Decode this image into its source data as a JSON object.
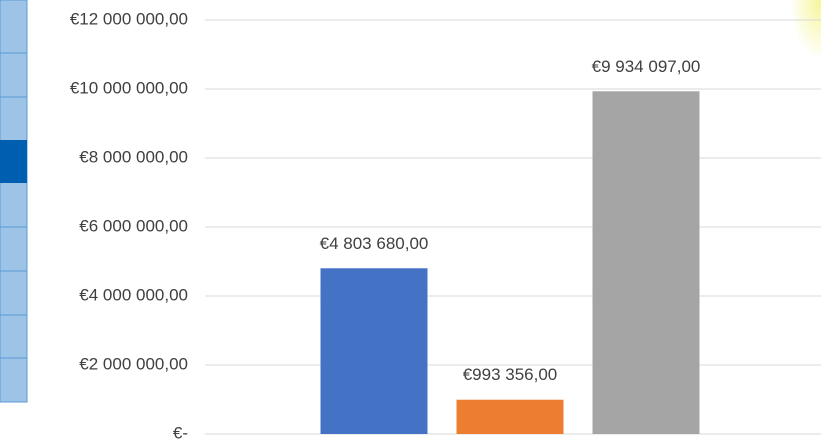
{
  "chart_data": {
    "type": "bar",
    "categories": [
      null,
      null,
      null
    ],
    "values": [
      4803680,
      993356,
      9934097
    ],
    "value_labels": [
      "€4 803 680,00",
      "€993 356,00",
      "€9 934 097,00"
    ],
    "colors": [
      "#4472c4",
      "#ed7d31",
      "#a5a5a5"
    ],
    "ylim": [
      0,
      12000000
    ],
    "yticks": [
      {
        "value": 0,
        "label": "€-"
      },
      {
        "value": 2000000,
        "label": "€2 000 000,00"
      },
      {
        "value": 4000000,
        "label": "€4 000 000,00"
      },
      {
        "value": 6000000,
        "label": "€6 000 000,00"
      },
      {
        "value": 8000000,
        "label": "€8 000 000,00"
      },
      {
        "value": 10000000,
        "label": "€10 000 000,00"
      },
      {
        "value": 12000000,
        "label": "€12 000 000,00"
      }
    ],
    "grid": true
  }
}
